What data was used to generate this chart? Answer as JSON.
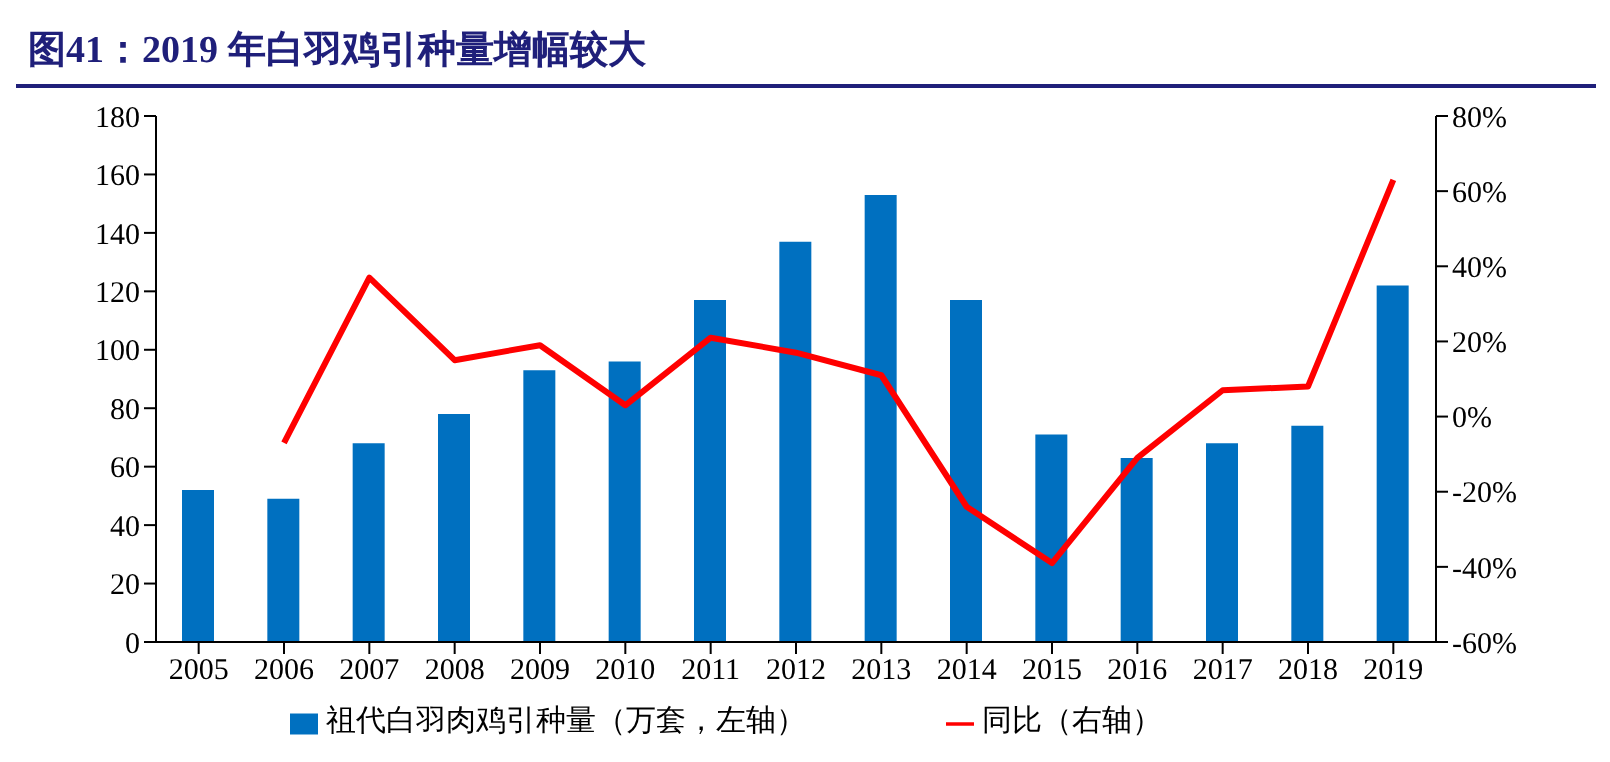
{
  "chart_data": {
    "type": "bar",
    "title": "图41：2019 年白羽鸡引种量增幅较大",
    "categories": [
      "2005",
      "2006",
      "2007",
      "2008",
      "2009",
      "2010",
      "2011",
      "2012",
      "2013",
      "2014",
      "2015",
      "2016",
      "2017",
      "2018",
      "2019"
    ],
    "series": [
      {
        "name": "祖代白羽肉鸡引种量（万套，左轴）",
        "color": "#0070c0",
        "values": [
          52,
          49,
          68,
          78,
          93,
          96,
          117,
          137,
          153,
          117,
          71,
          63,
          68,
          74,
          122
        ]
      },
      {
        "name": "同比（右轴）",
        "type": "line",
        "axis": "y2",
        "color": "#ff0000",
        "values": [
          null,
          -7,
          37,
          15,
          19,
          3,
          21,
          17,
          11,
          -24,
          -39,
          -11,
          7,
          8,
          63
        ]
      }
    ],
    "ylim": [
      0,
      180
    ],
    "yticks": [
      0,
      20,
      40,
      60,
      80,
      100,
      120,
      140,
      160,
      180
    ],
    "y2lim": [
      -60,
      80
    ],
    "y2ticks": [
      {
        "value": -60,
        "label": "-60%"
      },
      {
        "value": -40,
        "label": "-40%"
      },
      {
        "value": -20,
        "label": "-20%"
      },
      {
        "value": 0,
        "label": "0%"
      },
      {
        "value": 20,
        "label": "20%"
      },
      {
        "value": 40,
        "label": "40%"
      },
      {
        "value": 60,
        "label": "60%"
      },
      {
        "value": 80,
        "label": "80%"
      }
    ],
    "grid": false,
    "legend": "bottom",
    "marker": "none",
    "line_style": "solid"
  }
}
